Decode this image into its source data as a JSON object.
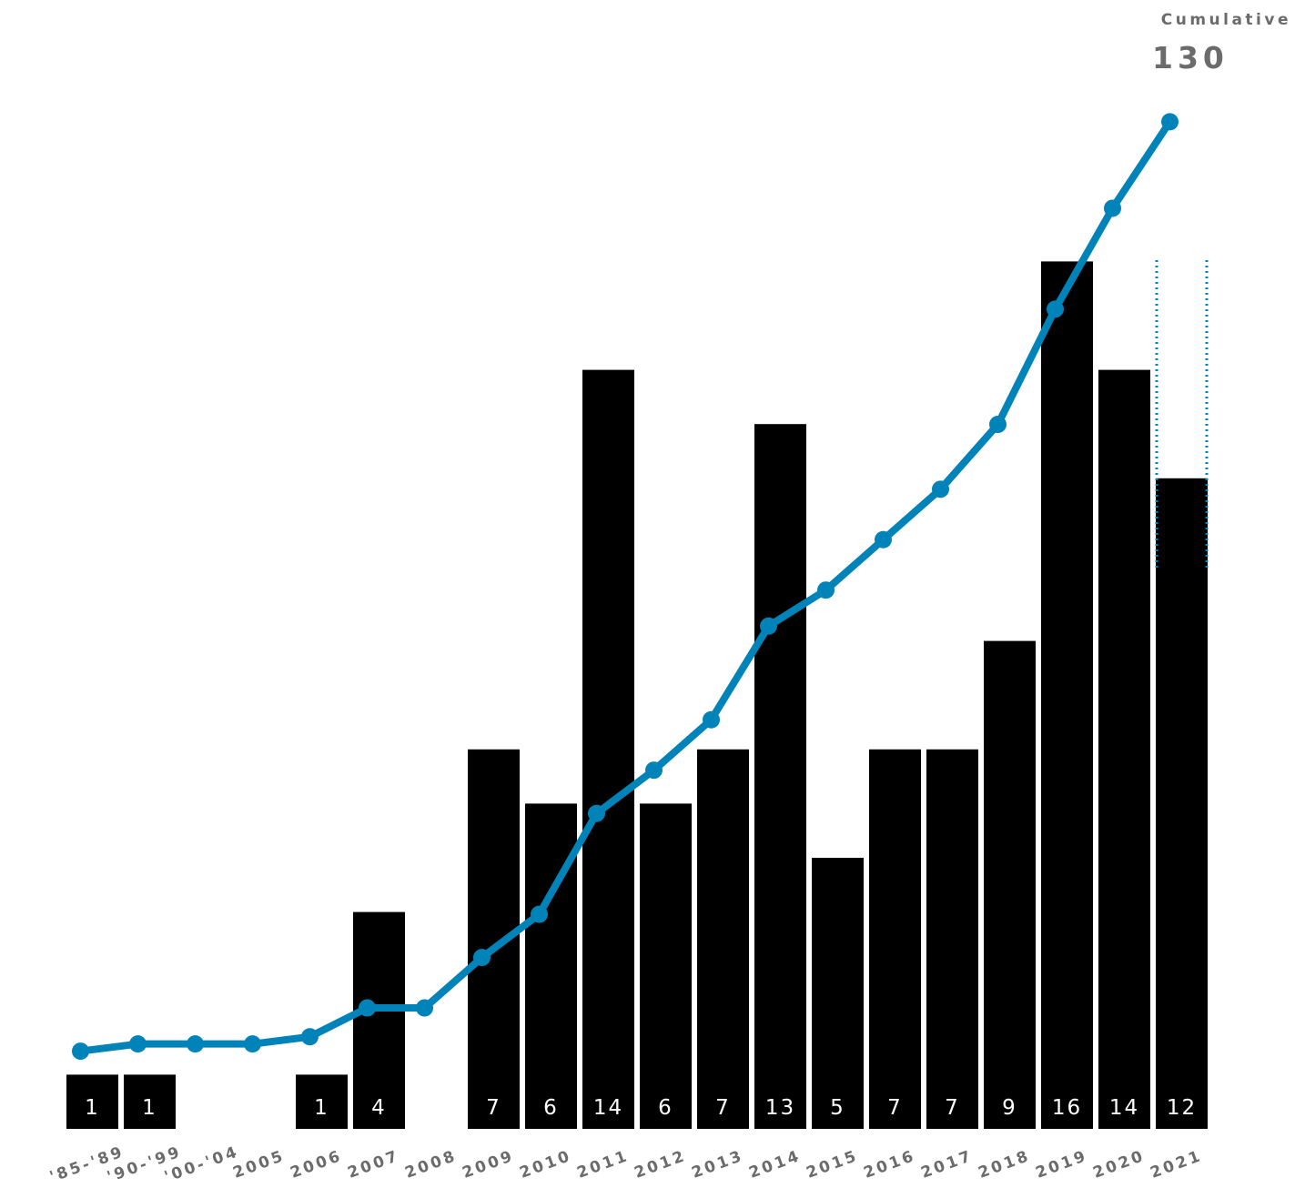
{
  "cumulative": {
    "label": "Cumulative",
    "value": "130"
  },
  "chart_data": {
    "type": "bar",
    "categories": [
      "'85-'89",
      "'90-'99",
      "'00-'04",
      "2005",
      "2006",
      "2007",
      "2008",
      "2009",
      "2010",
      "2011",
      "2012",
      "2013",
      "2014",
      "2015",
      "2016",
      "2017",
      "2018",
      "2019",
      "2020",
      "2021"
    ],
    "series": [
      {
        "values": [
          1,
          1,
          0,
          0,
          1,
          4,
          0,
          7,
          6,
          14,
          6,
          7,
          13,
          5,
          7,
          7,
          9,
          16,
          14,
          12
        ]
      },
      {
        "type": "line",
        "values": [
          1,
          2,
          2,
          2,
          3,
          7,
          7,
          14,
          20,
          34,
          40,
          47,
          60,
          65,
          72,
          79,
          88,
          104,
          118,
          130
        ]
      }
    ],
    "bar_value_labels": [
      "1",
      "1",
      "",
      "",
      "1",
      "4",
      "",
      "7",
      "6",
      "14",
      "6",
      "7",
      "13",
      "5",
      "7",
      "7",
      "9",
      "16",
      "14",
      "12"
    ],
    "highlighted_category": "2021",
    "colors": {
      "bars": "#000000",
      "line": "#0083b8",
      "bar_label": "#ffffff",
      "tick_label": "#6b6b6b"
    },
    "grid": false,
    "legend": "none"
  }
}
